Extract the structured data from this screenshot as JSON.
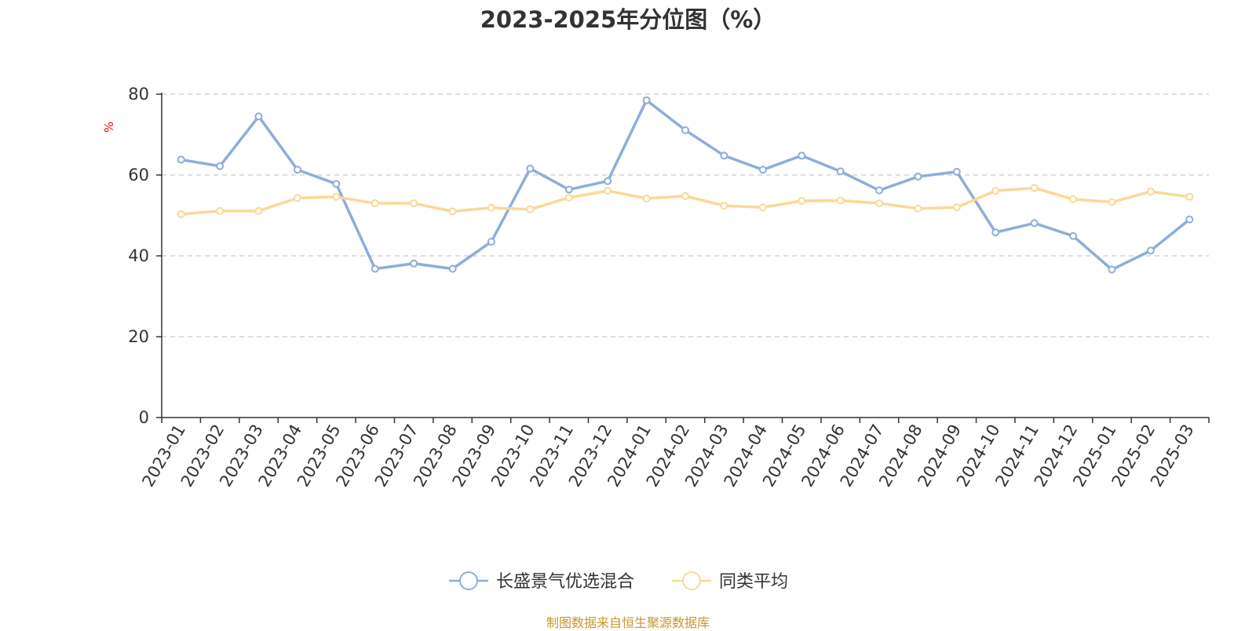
{
  "chart_data": {
    "type": "line",
    "title": "2023-2025年分位图（%）",
    "ylabel": "%",
    "ylim": [
      0,
      80
    ],
    "yticks": [
      0,
      20,
      40,
      60,
      80
    ],
    "grid": true,
    "legend_position": "bottom",
    "categories": [
      "2023-01",
      "2023-02",
      "2023-03",
      "2023-04",
      "2023-05",
      "2023-06",
      "2023-07",
      "2023-08",
      "2023-09",
      "2023-10",
      "2023-11",
      "2023-12",
      "2024-01",
      "2024-02",
      "2024-03",
      "2024-04",
      "2024-05",
      "2024-06",
      "2024-07",
      "2024-08",
      "2024-09",
      "2024-10",
      "2024-11",
      "2024-12",
      "2025-01",
      "2025-02",
      "2025-03"
    ],
    "series": [
      {
        "name": "长盛景气优选混合",
        "color": "#8eadd9",
        "values": [
          63.8,
          62.2,
          74.5,
          61.3,
          57.8,
          36.8,
          38.1,
          36.8,
          43.5,
          61.6,
          56.4,
          58.5,
          78.5,
          71.1,
          64.8,
          61.3,
          64.8,
          60.9,
          56.2,
          59.6,
          60.8,
          45.8,
          48.1,
          44.9,
          36.6,
          41.3,
          49.0
        ]
      },
      {
        "name": "同类平均",
        "color": "#fbd898",
        "values": [
          50.3,
          51.1,
          51.1,
          54.3,
          54.6,
          53.0,
          53.0,
          51.0,
          51.9,
          51.5,
          54.4,
          56.1,
          54.2,
          54.8,
          52.4,
          52.0,
          53.6,
          53.7,
          53.0,
          51.7,
          52.0,
          56.1,
          56.8,
          54.0,
          53.3,
          55.9,
          54.6
        ]
      }
    ]
  },
  "source_note": "制图数据来自恒生聚源数据库"
}
